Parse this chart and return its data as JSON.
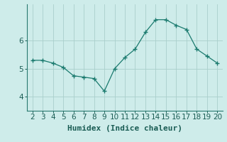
{
  "x": [
    2,
    3,
    4,
    5,
    6,
    7,
    8,
    9,
    10,
    11,
    12,
    13,
    14,
    15,
    16,
    17,
    18,
    19,
    20
  ],
  "y": [
    5.3,
    5.3,
    5.2,
    5.05,
    4.75,
    4.7,
    4.65,
    4.2,
    5.0,
    5.4,
    5.7,
    6.3,
    6.75,
    6.75,
    6.55,
    6.4,
    5.7,
    5.45,
    5.2
  ],
  "xlabel": "Humidex (Indice chaleur)",
  "line_color": "#1a7a6e",
  "bg_color": "#ceecea",
  "grid_color": "#aacfcc",
  "axis_color": "#1a5c54",
  "spine_color": "#2a7a70",
  "ylim": [
    3.5,
    7.3
  ],
  "xlim": [
    1.5,
    20.5
  ],
  "yticks": [
    4,
    5,
    6
  ],
  "xticks": [
    2,
    3,
    4,
    5,
    6,
    7,
    8,
    9,
    10,
    11,
    12,
    13,
    14,
    15,
    16,
    17,
    18,
    19,
    20
  ],
  "xlabel_fontsize": 8,
  "tick_fontsize": 7.5
}
